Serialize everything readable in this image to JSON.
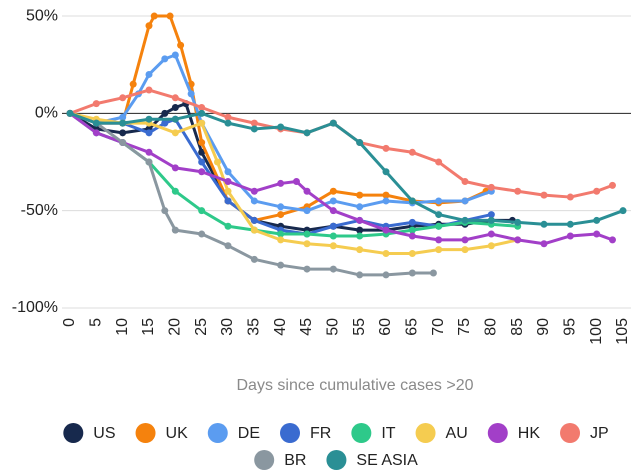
{
  "chart_data": {
    "type": "line",
    "x_label": "Days since cumulative cases >20",
    "xlim": [
      0,
      107
    ],
    "xticks": [
      0,
      5,
      10,
      15,
      20,
      25,
      30,
      35,
      40,
      45,
      50,
      55,
      60,
      65,
      70,
      75,
      80,
      85,
      90,
      95,
      100,
      105
    ],
    "ylim": [
      -100,
      58
    ],
    "yticks": [
      {
        "value": -100,
        "label": "-100%"
      },
      {
        "value": -50,
        "label": "-50%"
      },
      {
        "value": 0,
        "label": "0%"
      },
      {
        "value": 50,
        "label": "50%"
      }
    ],
    "grid": true,
    "legend": "bottom",
    "series": [
      {
        "name": "US",
        "color": "#17294d",
        "x": [
          0,
          5,
          10,
          15,
          18,
          20,
          22,
          25,
          30,
          35,
          40,
          45,
          50,
          55,
          60,
          65,
          70,
          75,
          80,
          84
        ],
        "values": [
          0,
          -8,
          -10,
          -8,
          0,
          3,
          5,
          -20,
          -45,
          -55,
          -58,
          -60,
          -58,
          -60,
          -60,
          -58,
          -57,
          -57,
          -55,
          -55
        ]
      },
      {
        "name": "UK",
        "color": "#f5820d",
        "x": [
          0,
          5,
          10,
          12,
          15,
          16,
          19,
          21,
          23,
          25,
          30,
          35,
          40,
          45,
          50,
          55,
          60,
          65,
          70,
          75,
          79
        ],
        "values": [
          0,
          -5,
          -5,
          15,
          45,
          50,
          50,
          35,
          15,
          -15,
          -45,
          -55,
          -52,
          -48,
          -40,
          -42,
          -42,
          -45,
          -46,
          -45,
          -40
        ]
      },
      {
        "name": "DE",
        "color": "#5b9cf0",
        "x": [
          0,
          5,
          10,
          13,
          15,
          18,
          20,
          23,
          25,
          30,
          35,
          40,
          45,
          50,
          55,
          60,
          65,
          70,
          75,
          80
        ],
        "values": [
          0,
          -5,
          -2,
          10,
          20,
          28,
          30,
          10,
          -5,
          -30,
          -45,
          -48,
          -50,
          -45,
          -48,
          -45,
          -46,
          -45,
          -45,
          -40
        ]
      },
      {
        "name": "FR",
        "color": "#3a6bd0",
        "x": [
          0,
          5,
          10,
          15,
          18,
          20,
          25,
          30,
          35,
          40,
          45,
          50,
          55,
          60,
          65,
          70,
          75,
          80
        ],
        "values": [
          0,
          -5,
          -5,
          -10,
          -5,
          -3,
          -25,
          -45,
          -55,
          -60,
          -62,
          -58,
          -55,
          -58,
          -56,
          -58,
          -55,
          -52
        ]
      },
      {
        "name": "IT",
        "color": "#2ec98a",
        "x": [
          0,
          5,
          10,
          15,
          20,
          25,
          30,
          35,
          40,
          45,
          50,
          55,
          60,
          65,
          70,
          75,
          80,
          85
        ],
        "values": [
          0,
          -10,
          -15,
          -25,
          -40,
          -50,
          -58,
          -60,
          -62,
          -62,
          -63,
          -63,
          -62,
          -60,
          -58,
          -56,
          -57,
          -58
        ]
      },
      {
        "name": "AU",
        "color": "#f5cc50",
        "x": [
          0,
          5,
          10,
          15,
          20,
          25,
          28,
          30,
          35,
          40,
          45,
          50,
          55,
          60,
          65,
          70,
          75,
          80,
          85
        ],
        "values": [
          0,
          -3,
          -5,
          -5,
          -10,
          -5,
          -25,
          -40,
          -60,
          -65,
          -67,
          -68,
          -70,
          -72,
          -72,
          -70,
          -70,
          -68,
          -65
        ]
      },
      {
        "name": "HK",
        "color": "#a23fc8",
        "x": [
          0,
          5,
          10,
          15,
          20,
          25,
          30,
          35,
          40,
          43,
          45,
          50,
          55,
          60,
          65,
          70,
          75,
          80,
          85,
          90,
          95,
          100,
          103
        ],
        "values": [
          0,
          -10,
          -15,
          -20,
          -28,
          -30,
          -35,
          -40,
          -36,
          -35,
          -40,
          -50,
          -55,
          -60,
          -63,
          -65,
          -65,
          -62,
          -65,
          -67,
          -63,
          -62,
          -65
        ]
      },
      {
        "name": "JP",
        "color": "#f27a6e",
        "x": [
          0,
          5,
          10,
          15,
          20,
          25,
          30,
          35,
          40,
          45,
          50,
          55,
          60,
          65,
          70,
          75,
          80,
          85,
          90,
          95,
          100,
          103
        ],
        "values": [
          0,
          5,
          8,
          12,
          8,
          3,
          -2,
          -5,
          -8,
          -10,
          -5,
          -15,
          -18,
          -20,
          -25,
          -35,
          -38,
          -40,
          -42,
          -43,
          -40,
          -37
        ]
      },
      {
        "name": "BR",
        "color": "#8a97a0",
        "x": [
          0,
          5,
          10,
          15,
          18,
          20,
          25,
          30,
          35,
          40,
          45,
          50,
          55,
          60,
          65,
          69
        ],
        "values": [
          0,
          -5,
          -15,
          -25,
          -50,
          -60,
          -62,
          -68,
          -75,
          -78,
          -80,
          -80,
          -83,
          -83,
          -82,
          -82
        ]
      },
      {
        "name": "SE ASIA",
        "color": "#2a8f95",
        "x": [
          0,
          5,
          10,
          15,
          20,
          25,
          30,
          35,
          40,
          45,
          50,
          55,
          60,
          65,
          70,
          75,
          80,
          85,
          90,
          95,
          100,
          105
        ],
        "values": [
          0,
          -5,
          -5,
          -3,
          -3,
          0,
          -5,
          -8,
          -7,
          -10,
          -5,
          -15,
          -30,
          -45,
          -52,
          -55,
          -55,
          -56,
          -57,
          -57,
          -55,
          -50
        ]
      }
    ]
  }
}
